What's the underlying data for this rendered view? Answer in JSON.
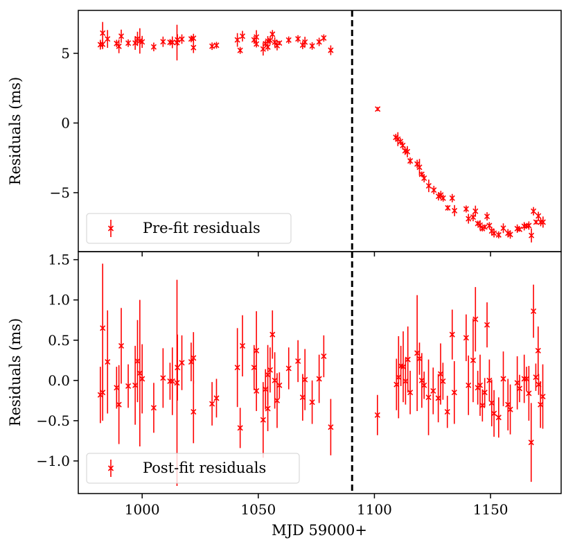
{
  "colors": {
    "series": "#ff0000",
    "axis": "#000000",
    "vline": "#000000"
  },
  "chart_data": [
    {
      "type": "scatter",
      "panel": "top",
      "title": "",
      "xlabel": "",
      "ylabel": "Residuals (ms)",
      "xlim": [
        972.5,
        1180.4
      ],
      "ylim": [
        -9.23,
        8.08
      ],
      "yticks": [
        5,
        0,
        -5
      ],
      "ytick_labels": [
        "5",
        "0",
        "−5"
      ],
      "xticks": [
        1000,
        1050,
        1100,
        1150
      ],
      "grid": false,
      "legend": {
        "label": "Pre-fit residuals",
        "placement": "bottom-left"
      },
      "vline_x": 1090.4,
      "series": [
        {
          "name": "Pre-fit residuals",
          "x": [
            982.0,
            983.0,
            983.0,
            985.1,
            989.0,
            990.0,
            991.0,
            994.0,
            997.0,
            998.0,
            999.0,
            1000.0,
            1005.0,
            1009.0,
            1012.0,
            1013.0,
            1015.0,
            1015.2,
            1017.1,
            1021.1,
            1022.1,
            1022.1,
            1030.1,
            1032.0,
            1041.0,
            1042.2,
            1043.2,
            1048.2,
            1049.2,
            1049.2,
            1052.1,
            1053.1,
            1054.1,
            1054.1,
            1055.1,
            1056.1,
            1057.1,
            1058.1,
            1059.1,
            1063.1,
            1067.1,
            1069.1,
            1070.1,
            1073.2,
            1076.2,
            1078.2,
            1081.2,
            1101.4,
            1109.2,
            1110.1,
            1111.2,
            1112.2,
            1113.2,
            1114.2,
            1115.4,
            1118.4,
            1119.4,
            1120.4,
            1121.4,
            1123.4,
            1125.6,
            1127.6,
            1128.6,
            1129.6,
            1131.6,
            1133.5,
            1134.5,
            1139.5,
            1140.5,
            1142.5,
            1143.5,
            1144.5,
            1145.5,
            1146.5,
            1147.5,
            1148.5,
            1149.5,
            1150.5,
            1151.5,
            1153.5,
            1155.5,
            1157.5,
            1158.5,
            1161.5,
            1162.5,
            1164.5,
            1165.5,
            1166.5,
            1167.6,
            1168.5,
            1169.6,
            1170.6,
            1171.6,
            1172.6
          ],
          "y": [
            5.62,
            5.65,
            6.45,
            6.03,
            5.71,
            5.5,
            6.23,
            5.73,
            5.74,
            6.04,
            5.89,
            5.82,
            5.46,
            5.83,
            5.79,
            5.79,
            5.77,
            5.96,
            6.02,
            6.03,
            6.08,
            5.41,
            5.51,
            5.58,
            5.96,
            5.21,
            6.23,
            5.96,
            6.17,
            5.67,
            5.31,
            5.69,
            5.45,
            5.87,
            5.93,
            6.37,
            5.8,
            5.55,
            5.74,
            5.95,
            6.04,
            5.59,
            5.81,
            5.53,
            5.82,
            6.1,
            5.22,
            1.0,
            -1.03,
            -1.16,
            -1.33,
            -1.61,
            -1.99,
            -2.06,
            -2.72,
            -2.94,
            -3.18,
            -3.68,
            -3.96,
            -4.51,
            -4.81,
            -5.26,
            -5.17,
            -5.39,
            -6.09,
            -5.39,
            -6.29,
            -6.17,
            -6.87,
            -6.75,
            -6.33,
            -7.21,
            -7.33,
            -7.58,
            -7.46,
            -6.7,
            -7.36,
            -7.75,
            -7.91,
            -8.03,
            -7.55,
            -7.91,
            -8.0,
            -7.58,
            -7.63,
            -7.41,
            -7.38,
            -7.36,
            -8.07,
            -6.33,
            -7.11,
            -6.67,
            -7.11,
            -7.11
          ],
          "err": [
            0.35,
            0.35,
            0.8,
            0.64,
            0.26,
            0.49,
            0.47,
            0.27,
            0.49,
            0.51,
            0.91,
            0.43,
            0.31,
            0.37,
            0.23,
            0.42,
            1.28,
            0.41,
            0.34,
            0.24,
            0.32,
            0.39,
            0.27,
            0.24,
            0.49,
            0.25,
            0.38,
            0.28,
            0.49,
            0.25,
            0.47,
            0.25,
            0.28,
            0.37,
            0.28,
            0.3,
            0.35,
            0.34,
            0.16,
            0.26,
            0.26,
            0.29,
            0.38,
            0.27,
            0.3,
            0.26,
            0.35,
            0.15,
            0.25,
            0.5,
            0.25,
            0.3,
            0.3,
            0.4,
            0.25,
            0.3,
            0.6,
            0.2,
            0.3,
            0.45,
            0.3,
            0.3,
            0.3,
            0.25,
            0.2,
            0.3,
            0.4,
            0.25,
            0.35,
            0.3,
            0.4,
            0.2,
            0.35,
            0.2,
            0.18,
            0.3,
            0.25,
            0.3,
            0.3,
            0.25,
            0.35,
            0.3,
            0.3,
            0.3,
            0.17,
            0.3,
            0.15,
            0.3,
            0.5,
            0.3,
            0.17,
            0.3,
            0.3,
            0.4
          ]
        }
      ]
    },
    {
      "type": "scatter",
      "panel": "bottom",
      "title": "",
      "xlabel": "MJD 59000+",
      "ylabel": "Residuals (ms)",
      "xlim": [
        972.5,
        1180.4
      ],
      "ylim": [
        -1.405,
        1.6
      ],
      "yticks": [
        1.5,
        1.0,
        0.5,
        0.0,
        -0.5,
        -1.0
      ],
      "ytick_labels": [
        "1.5",
        "1.0",
        "0.5",
        "0.0",
        "−0.5",
        "−1.0"
      ],
      "xticks": [
        1000,
        1050,
        1100,
        1150
      ],
      "xtick_labels": [
        "1000",
        "1050",
        "1100",
        "1150"
      ],
      "grid": false,
      "legend": {
        "label": "Post-fit residuals",
        "placement": "bottom-left"
      },
      "vline_x": 1090.4,
      "series": [
        {
          "name": "Post-fit residuals",
          "x": [
            982.0,
            983.0,
            983.0,
            985.1,
            989.0,
            990.0,
            991.0,
            994.0,
            997.0,
            998.0,
            999.0,
            1000.0,
            1005.0,
            1009.0,
            1012.0,
            1013.0,
            1015.0,
            1015.2,
            1017.1,
            1021.1,
            1022.1,
            1022.1,
            1030.1,
            1032.0,
            1041.0,
            1042.2,
            1043.2,
            1048.2,
            1049.2,
            1049.2,
            1052.1,
            1053.1,
            1054.1,
            1054.1,
            1055.1,
            1056.1,
            1057.1,
            1058.1,
            1059.1,
            1063.1,
            1067.1,
            1069.1,
            1070.1,
            1073.2,
            1076.2,
            1078.2,
            1081.2,
            1101.3,
            1109.5,
            1110.4,
            1111.4,
            1112.4,
            1113.4,
            1114.4,
            1115.4,
            1118.4,
            1119.4,
            1120.4,
            1121.4,
            1123.3,
            1125.3,
            1127.5,
            1128.5,
            1129.5,
            1131.4,
            1133.5,
            1134.4,
            1139.5,
            1140.5,
            1142.5,
            1143.5,
            1144.5,
            1145.5,
            1146.5,
            1147.5,
            1148.5,
            1149.5,
            1150.5,
            1151.5,
            1153.5,
            1155.5,
            1157.5,
            1158.5,
            1161.5,
            1162.5,
            1164.5,
            1165.5,
            1166.5,
            1167.5,
            1168.5,
            1169.5,
            1170.5,
            1170.7,
            1171.5,
            1172.5
          ],
          "y": [
            -0.18,
            -0.15,
            0.65,
            0.23,
            -0.09,
            -0.3,
            0.43,
            -0.07,
            -0.06,
            0.24,
            0.09,
            0.02,
            -0.34,
            0.03,
            -0.01,
            -0.01,
            -0.03,
            0.16,
            0.22,
            0.23,
            0.28,
            -0.39,
            -0.29,
            -0.22,
            0.16,
            -0.59,
            0.43,
            0.16,
            0.37,
            -0.13,
            -0.49,
            -0.11,
            -0.35,
            0.07,
            0.13,
            0.57,
            0.0,
            -0.25,
            -0.06,
            0.15,
            0.24,
            -0.21,
            0.01,
            -0.27,
            0.02,
            0.3,
            -0.58,
            -0.43,
            -0.05,
            0.04,
            0.18,
            0.17,
            -0.01,
            0.26,
            -0.15,
            0.34,
            0.27,
            0.0,
            -0.06,
            -0.21,
            -0.13,
            -0.22,
            0.08,
            -0.01,
            -0.39,
            0.57,
            -0.15,
            0.53,
            -0.06,
            0.25,
            0.76,
            -0.09,
            -0.06,
            -0.31,
            -0.15,
            0.69,
            0.0,
            -0.28,
            -0.41,
            -0.46,
            0.02,
            -0.3,
            -0.36,
            -0.03,
            -0.1,
            0.02,
            0.02,
            -0.16,
            -0.77,
            0.86,
            0.04,
            0.37,
            -0.05,
            -0.3,
            -0.2
          ],
          "err": [
            0.35,
            0.35,
            0.8,
            0.64,
            0.26,
            0.49,
            0.47,
            0.27,
            0.49,
            0.51,
            0.91,
            0.43,
            0.31,
            0.37,
            0.23,
            0.42,
            1.28,
            0.41,
            0.34,
            0.24,
            0.32,
            0.39,
            0.27,
            0.24,
            0.49,
            0.25,
            0.38,
            0.28,
            0.49,
            0.25,
            0.47,
            0.25,
            0.28,
            0.37,
            0.28,
            0.3,
            0.35,
            0.34,
            0.16,
            0.26,
            0.26,
            0.29,
            0.38,
            0.27,
            0.3,
            0.26,
            0.35,
            0.25,
            0.32,
            0.51,
            0.25,
            0.44,
            0.29,
            0.41,
            0.27,
            0.72,
            0.2,
            0.34,
            0.17,
            0.47,
            0.29,
            0.3,
            0.38,
            0.23,
            0.2,
            0.31,
            0.39,
            0.29,
            0.37,
            0.52,
            0.4,
            0.21,
            0.38,
            0.2,
            0.18,
            0.28,
            0.26,
            0.29,
            0.29,
            0.25,
            0.34,
            0.32,
            0.31,
            0.33,
            0.17,
            0.3,
            0.15,
            0.34,
            0.49,
            0.33,
            0.17,
            0.3,
            0.13,
            0.29,
            0.4
          ]
        }
      ]
    }
  ]
}
